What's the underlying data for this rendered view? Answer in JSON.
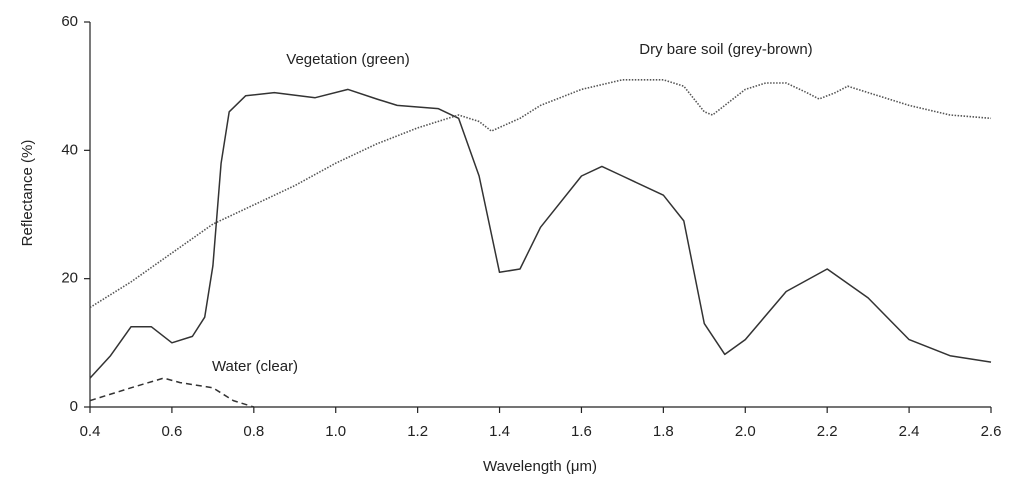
{
  "chart_data": {
    "type": "line",
    "xlabel": "Wavelength (μm)",
    "ylabel": "Reflectance (%)",
    "xlim": [
      0.4,
      2.6
    ],
    "ylim": [
      0,
      60
    ],
    "xticks": [
      0.4,
      0.6,
      0.8,
      {
        "value": 1,
        "label": "1.0"
      },
      1.2,
      1.4,
      1.6,
      1.8,
      {
        "value": 2,
        "label": "2.0"
      },
      2.2,
      2.4,
      2.6
    ],
    "yticks": [
      0,
      20,
      40,
      60
    ],
    "grid": false,
    "series": [
      {
        "name": "Vegetation (green)",
        "color": "#333333",
        "style": "solid",
        "x": [
          0.4,
          0.45,
          0.5,
          0.55,
          0.6,
          0.65,
          0.68,
          0.7,
          0.72,
          0.74,
          0.78,
          0.85,
          0.95,
          1.03,
          1.1,
          1.15,
          1.25,
          1.3,
          1.35,
          1.4,
          1.45,
          1.5,
          1.6,
          1.65,
          1.7,
          1.8,
          1.85,
          1.9,
          1.95,
          2.0,
          2.1,
          2.2,
          2.3,
          2.4,
          2.5,
          2.6
        ],
        "values": [
          4.5,
          8,
          12.5,
          12.5,
          10,
          11,
          14,
          22,
          38,
          46,
          48.5,
          49,
          48.2,
          49.5,
          48,
          47,
          46.5,
          45,
          36,
          21,
          21.5,
          28,
          36,
          37.5,
          36,
          33,
          29,
          13,
          8.2,
          10.5,
          18,
          21.5,
          17,
          10.5,
          8,
          7
        ]
      },
      {
        "name": "Dry bare soil (grey-brown)",
        "color": "#555555",
        "style": "dotted",
        "x": [
          0.4,
          0.5,
          0.6,
          0.7,
          0.8,
          0.9,
          1.0,
          1.1,
          1.2,
          1.3,
          1.35,
          1.38,
          1.45,
          1.5,
          1.6,
          1.7,
          1.8,
          1.85,
          1.9,
          1.92,
          1.95,
          2.0,
          2.05,
          2.1,
          2.15,
          2.18,
          2.22,
          2.25,
          2.3,
          2.4,
          2.5,
          2.6
        ],
        "values": [
          15.5,
          19.5,
          24,
          28.5,
          31.5,
          34.5,
          38,
          41,
          43.5,
          45.5,
          44.5,
          43,
          45,
          47,
          49.5,
          51,
          51,
          50,
          46,
          45.5,
          47,
          49.5,
          50.5,
          50.5,
          49,
          48,
          49,
          50,
          49,
          47,
          45.5,
          45
        ]
      },
      {
        "name": "Water (clear)",
        "color": "#333333",
        "style": "dashed",
        "x": [
          0.4,
          0.5,
          0.58,
          0.62,
          0.7,
          0.75,
          0.8
        ],
        "values": [
          1,
          3,
          4.5,
          3.8,
          3,
          1,
          0
        ]
      }
    ]
  }
}
